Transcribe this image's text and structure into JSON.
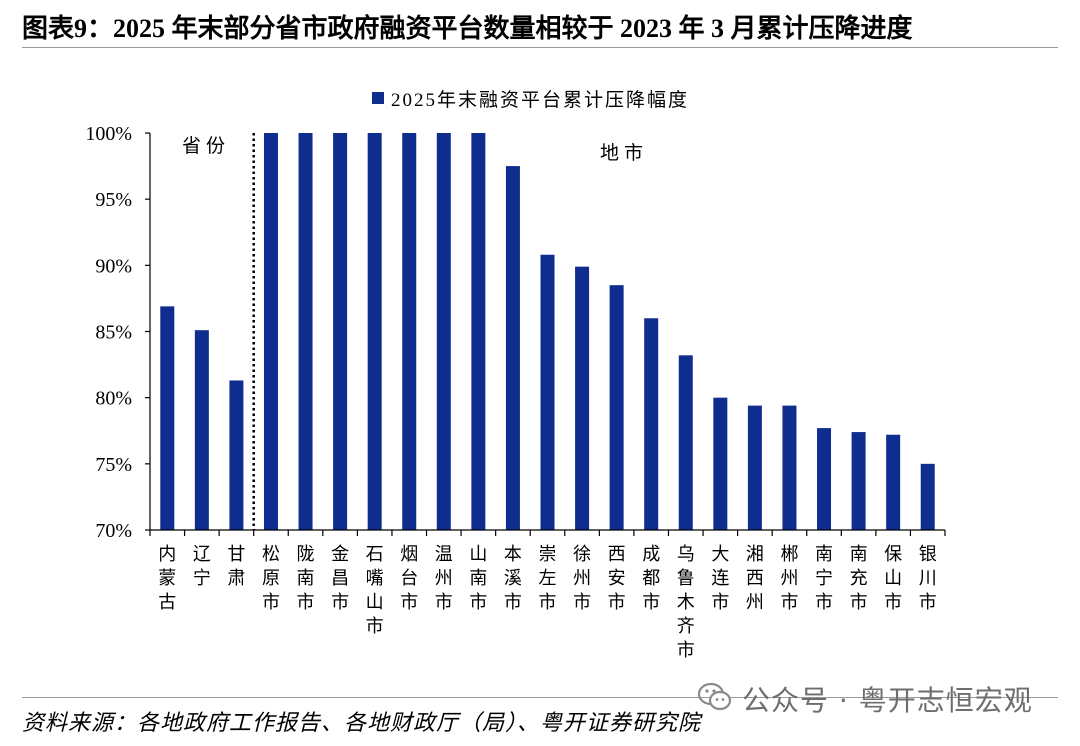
{
  "title": "图表9：2025 年末部分省市政府融资平台数量相较于 2023 年 3 月累计压降进度",
  "source": "资料来源：各地政府工作报告、各地财政厅（局）、粤开证券研究院",
  "watermark": {
    "text": "公众号 · 粤开志恒宏观",
    "icon": "wechat-icon"
  },
  "colors": {
    "bar": "#0f2d8f",
    "rule": "#9a9a9a",
    "watermark": "#6e6e6e"
  },
  "chart_data": {
    "type": "bar",
    "categories": [
      "内蒙古",
      "辽宁",
      "甘肃",
      "松原市",
      "陇南市",
      "金昌市",
      "石嘴山市",
      "烟台市",
      "温州市",
      "山南市",
      "本溪市",
      "崇左市",
      "徐州市",
      "西安市",
      "成都市",
      "乌鲁木齐市",
      "大连市",
      "湘西州",
      "郴州市",
      "南宁市",
      "南充市",
      "保山市",
      "银川市"
    ],
    "series": [
      {
        "name": "2025年末融资平台累计压降幅度",
        "values": [
          86.9,
          85.1,
          81.3,
          100,
          100,
          100,
          100,
          100,
          100,
          100,
          97.5,
          90.8,
          89.9,
          88.5,
          86.0,
          83.2,
          80.0,
          79.4,
          79.4,
          77.7,
          77.4,
          77.2,
          75.0
        ]
      }
    ],
    "ylim": [
      70,
      100
    ],
    "yticks": [
      70,
      75,
      80,
      85,
      90,
      95,
      100
    ],
    "ytick_labels": [
      "70%",
      "75%",
      "80%",
      "85%",
      "90%",
      "95%",
      "100%"
    ],
    "annotations": [
      "省份",
      "地市"
    ],
    "legend_position": "top",
    "grid": false
  }
}
